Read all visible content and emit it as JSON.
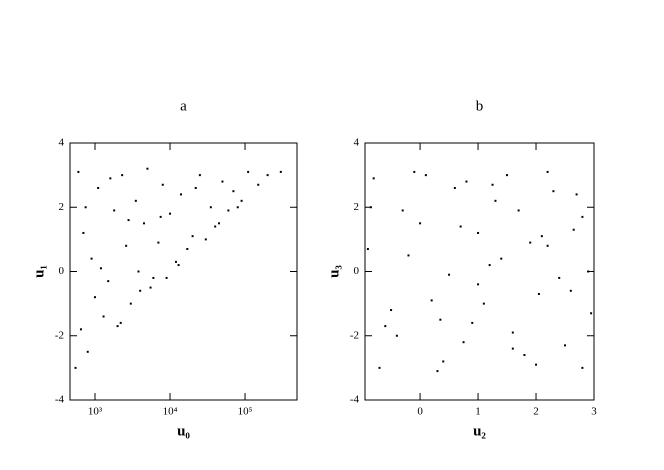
{
  "chart_data": [
    {
      "type": "scatter",
      "title": "a",
      "x_label": "u₀",
      "y_label": "u₁",
      "log_x": true,
      "color": "#000000",
      "xlim": [
        464,
        493000
      ],
      "ylim": [
        -4,
        4
      ],
      "xticks": [
        {
          "value": 1000,
          "label": "10³"
        },
        {
          "value": 10000,
          "label": "10⁴"
        },
        {
          "value": 100000,
          "label": "10⁵"
        }
      ],
      "yticks": [
        -4,
        -2,
        0,
        2,
        4
      ],
      "x": [
        600,
        700,
        800,
        900,
        1100,
        1300,
        1500,
        1800,
        2000,
        2300,
        2600,
        3000,
        3500,
        4000,
        4500,
        5000,
        6000,
        7000,
        8000,
        9000,
        10000,
        12000,
        14000,
        17000,
        20000,
        25000,
        30000,
        35000,
        40000,
        50000,
        60000,
        70000,
        90000,
        110000,
        150000,
        200000,
        300000,
        550,
        650,
        750,
        1000,
        1200,
        1600,
        2200,
        2800,
        3800,
        5500,
        7500,
        13000,
        22000,
        45000,
        80000
      ],
      "y": [
        3.1,
        1.2,
        -2.5,
        0.4,
        2.6,
        -1.4,
        -0.3,
        1.9,
        -1.7,
        3.0,
        0.8,
        -1.0,
        2.2,
        -0.6,
        1.5,
        3.2,
        -0.2,
        0.9,
        2.7,
        -0.2,
        1.8,
        0.3,
        2.4,
        0.7,
        1.1,
        3.0,
        1.0,
        2.0,
        1.4,
        2.8,
        1.9,
        2.5,
        2.2,
        3.1,
        2.7,
        3.0,
        3.1,
        -3.0,
        -1.8,
        2.0,
        -0.8,
        0.1,
        2.9,
        -1.6,
        1.6,
        0.0,
        -0.5,
        1.7,
        0.2,
        2.6,
        1.5,
        2.0
      ]
    },
    {
      "type": "scatter",
      "title": "b",
      "x_label": "u₂",
      "y_label": "u₃",
      "log_x": false,
      "color": "#000000",
      "xlim": [
        -0.95,
        3
      ],
      "ylim": [
        -4,
        4
      ],
      "xticks": [
        0,
        1,
        2,
        3
      ],
      "yticks": [
        -4,
        -2,
        0,
        2,
        4
      ],
      "x": [
        -0.8,
        -0.5,
        -0.2,
        0.1,
        0.4,
        0.7,
        1.0,
        1.3,
        1.6,
        1.9,
        2.2,
        2.5,
        2.8,
        -0.7,
        -0.3,
        0.2,
        0.6,
        0.9,
        1.2,
        1.5,
        1.8,
        2.1,
        2.4,
        2.7,
        2.95,
        -0.9,
        -0.4,
        0.0,
        0.3,
        0.8,
        1.1,
        1.4,
        1.7,
        2.0,
        2.3,
        2.6,
        2.9,
        -0.6,
        -0.1,
        0.5,
        1.0,
        1.6,
        2.2,
        2.8,
        -0.85,
        0.35,
        1.25,
        2.05,
        2.65,
        0.75
      ],
      "y": [
        2.9,
        -1.2,
        0.5,
        3.0,
        -2.8,
        1.4,
        -0.4,
        2.2,
        -1.9,
        0.9,
        3.1,
        -2.3,
        1.7,
        -3.0,
        1.9,
        -0.9,
        2.6,
        -1.6,
        0.2,
        3.0,
        -2.6,
        1.1,
        -0.2,
        2.4,
        -1.3,
        0.7,
        -2.0,
        1.5,
        -3.1,
        2.8,
        -1.0,
        0.4,
        1.9,
        -2.9,
        2.5,
        -0.6,
        0.0,
        -1.7,
        3.1,
        -0.1,
        1.2,
        -2.4,
        0.8,
        -3.0,
        2.0,
        -1.5,
        2.7,
        -0.7,
        1.3,
        -2.2
      ]
    }
  ]
}
